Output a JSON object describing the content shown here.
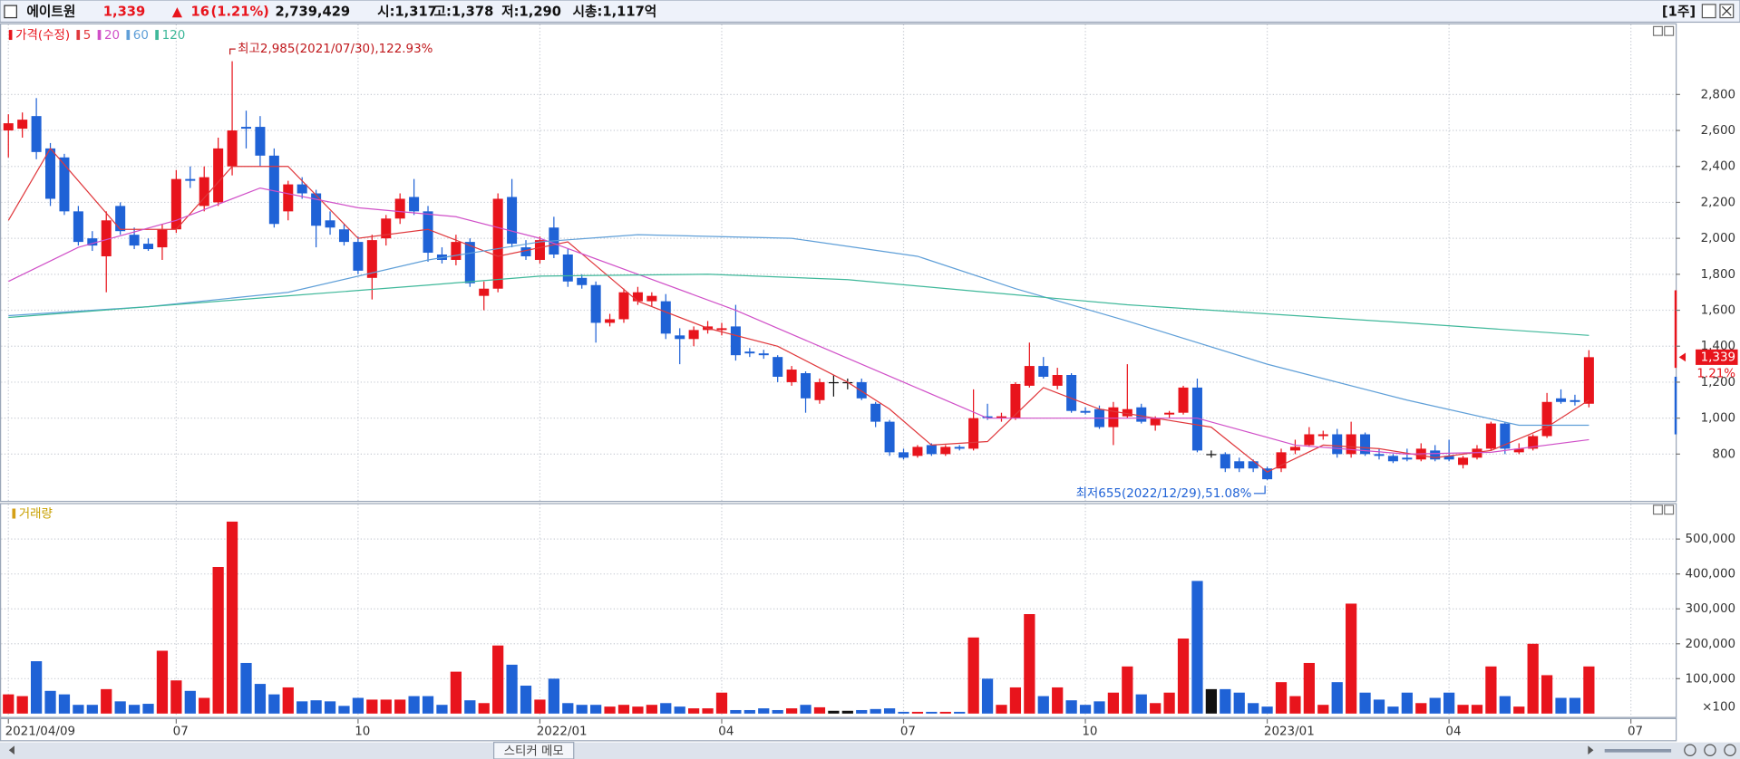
{
  "header": {
    "name": "에이트원",
    "price": "1,339",
    "arrow": "▲",
    "change": "16",
    "change_rate": "(1.21%)",
    "volume": "2,739,429",
    "open": "시:1,317",
    "high": "고:1,378",
    "low": "저:1,290",
    "market_cap": "시총:1,117억",
    "period": "[1주]"
  },
  "sticker_memo": "스티커 메모",
  "chart_data": [
    {
      "type": "candlestick",
      "name": "가격(수정)",
      "up_color": "#e8141c",
      "down_color": "#1f62d6",
      "flat_color": "#111111",
      "xlim": [
        -0.6,
        119.2
      ],
      "xticks": [
        {
          "value": 0,
          "label": "2021/04/09"
        },
        {
          "value": 12,
          "label": "07"
        },
        {
          "value": 25,
          "label": "10"
        },
        {
          "value": 38,
          "label": "2022/01"
        },
        {
          "value": 51,
          "label": "04"
        },
        {
          "value": 64,
          "label": "07"
        },
        {
          "value": 77,
          "label": "10"
        },
        {
          "value": 90,
          "label": "2023/01"
        },
        {
          "value": 103,
          "label": "04"
        },
        {
          "value": 116,
          "label": "07"
        }
      ],
      "ylim": [
        540,
        3190
      ],
      "yticks": [
        800,
        {
          "value": 1000,
          "label": "1,000"
        },
        {
          "value": 1200,
          "label": "1,200"
        },
        {
          "value": 1400,
          "label": "1,400"
        },
        {
          "value": 1600,
          "label": "1,600"
        },
        {
          "value": 1800,
          "label": "1,800"
        },
        {
          "value": 2000,
          "label": "2,000"
        },
        {
          "value": 2200,
          "label": "2,200"
        },
        {
          "value": 2400,
          "label": "2,400"
        },
        {
          "value": 2600,
          "label": "2,600"
        },
        {
          "value": 2800,
          "label": "2,800"
        }
      ],
      "grid": true,
      "open": [
        2600,
        2610,
        2680,
        2500,
        2450,
        2150,
        2000,
        1900,
        2180,
        2020,
        1970,
        1950,
        2050,
        2330,
        2180,
        2200,
        2400,
        2620,
        2620,
        2460,
        2150,
        2300,
        2250,
        2100,
        2050,
        1980,
        1780,
        2000,
        2110,
        2230,
        2150,
        1910,
        1880,
        1980,
        1680,
        1720,
        2230,
        1950,
        1880,
        2060,
        1910,
        1780,
        1740,
        1530,
        1550,
        1650,
        1650,
        1650,
        1460,
        1440,
        1490,
        1490,
        1510,
        1370,
        1360,
        1340,
        1200,
        1250,
        1100,
        1200,
        1200,
        1200,
        1080,
        980,
        810,
        790,
        850,
        800,
        840,
        830,
        1010,
        1000,
        1000,
        1180,
        1290,
        1180,
        1240,
        1040,
        1050,
        950,
        1010,
        1060,
        960,
        1020,
        1030,
        1170,
        800,
        800,
        760,
        760,
        720,
        720,
        820,
        850,
        900,
        910,
        800,
        910,
        800,
        790,
        780,
        770,
        820,
        790,
        740,
        780,
        830,
        970,
        810,
        830,
        900,
        1110,
        1100,
        1080
      ],
      "high": [
        2690,
        2700,
        2780,
        2530,
        2470,
        2180,
        2040,
        2150,
        2200,
        2060,
        2000,
        2080,
        2380,
        2400,
        2400,
        2560,
        2985,
        2710,
        2680,
        2500,
        2320,
        2340,
        2270,
        2150,
        2080,
        2010,
        2020,
        2130,
        2250,
        2330,
        2180,
        1950,
        2020,
        2000,
        1760,
        2250,
        2330,
        1990,
        2010,
        2120,
        1940,
        1800,
        1760,
        1580,
        1720,
        1730,
        1700,
        1690,
        1500,
        1510,
        1540,
        1530,
        1630,
        1390,
        1380,
        1350,
        1290,
        1260,
        1220,
        1240,
        1220,
        1220,
        1090,
        990,
        830,
        850,
        860,
        850,
        850,
        1160,
        1080,
        1030,
        1200,
        1420,
        1340,
        1280,
        1250,
        1060,
        1070,
        1090,
        1300,
        1080,
        1010,
        1040,
        1180,
        1220,
        820,
        810,
        780,
        770,
        730,
        830,
        880,
        950,
        930,
        940,
        980,
        920,
        830,
        800,
        830,
        860,
        850,
        880,
        790,
        850,
        980,
        980,
        860,
        910,
        1140,
        1160,
        1130,
        1378
      ],
      "low": [
        2450,
        2560,
        2440,
        2180,
        2130,
        1960,
        1930,
        1700,
        2020,
        1940,
        1930,
        1880,
        2030,
        2280,
        2150,
        2180,
        2350,
        2500,
        2400,
        2060,
        2100,
        2220,
        1950,
        2020,
        1960,
        1800,
        1660,
        1960,
        2080,
        2130,
        1870,
        1860,
        1850,
        1730,
        1600,
        1700,
        1950,
        1880,
        1860,
        1890,
        1730,
        1720,
        1420,
        1510,
        1530,
        1630,
        1620,
        1440,
        1300,
        1400,
        1470,
        1460,
        1320,
        1340,
        1330,
        1200,
        1180,
        1030,
        1080,
        1120,
        1160,
        1100,
        950,
        790,
        770,
        780,
        790,
        790,
        820,
        820,
        990,
        980,
        990,
        1170,
        1220,
        1160,
        1030,
        1020,
        940,
        850,
        1000,
        970,
        930,
        1000,
        1020,
        810,
        780,
        700,
        700,
        700,
        655,
        700,
        800,
        840,
        880,
        780,
        780,
        790,
        770,
        750,
        760,
        760,
        760,
        760,
        720,
        770,
        820,
        800,
        800,
        820,
        890,
        1080,
        1070,
        1060
      ],
      "close": [
        2640,
        2660,
        2480,
        2220,
        2150,
        1980,
        1960,
        2100,
        2040,
        1960,
        1940,
        2050,
        2330,
        2320,
        2340,
        2500,
        2600,
        2610,
        2460,
        2080,
        2300,
        2250,
        2070,
        2060,
        1980,
        1820,
        1990,
        2110,
        2220,
        2150,
        1920,
        1880,
        1980,
        1750,
        1720,
        2220,
        1970,
        1900,
        1990,
        1910,
        1760,
        1740,
        1530,
        1550,
        1700,
        1700,
        1680,
        1470,
        1440,
        1490,
        1510,
        1500,
        1350,
        1360,
        1350,
        1230,
        1270,
        1110,
        1200,
        1200,
        1200,
        1110,
        980,
        810,
        780,
        840,
        800,
        840,
        830,
        1000,
        1000,
        1010,
        1190,
        1290,
        1230,
        1240,
        1040,
        1030,
        950,
        1060,
        1050,
        980,
        1000,
        1030,
        1170,
        820,
        800,
        720,
        720,
        720,
        660,
        810,
        840,
        910,
        910,
        800,
        910,
        800,
        790,
        760,
        770,
        830,
        770,
        770,
        780,
        830,
        970,
        830,
        830,
        900,
        1090,
        1090,
        1090,
        1339
      ],
      "series": [
        {
          "name": "5",
          "color": "#e0383c",
          "x": [
            0,
            3,
            8,
            12,
            16,
            20,
            25,
            30,
            35,
            40,
            45,
            50,
            55,
            60,
            63,
            66,
            70,
            74,
            78,
            82,
            86,
            90,
            94,
            98,
            102,
            106,
            110,
            113
          ],
          "values": [
            2100,
            2500,
            2050,
            2050,
            2400,
            2400,
            2000,
            2050,
            1900,
            1980,
            1650,
            1500,
            1400,
            1200,
            1050,
            850,
            870,
            1170,
            1050,
            1000,
            950,
            700,
            850,
            830,
            780,
            820,
            950,
            1100
          ]
        },
        {
          "name": "20",
          "color": "#d050c8",
          "x": [
            0,
            5,
            12,
            18,
            25,
            32,
            38,
            45,
            52,
            58,
            64,
            70,
            78,
            85,
            92,
            100,
            106,
            113
          ],
          "values": [
            1760,
            1950,
            2100,
            2280,
            2170,
            2120,
            2000,
            1800,
            1600,
            1400,
            1200,
            1000,
            1000,
            1000,
            850,
            800,
            810,
            880
          ]
        },
        {
          "name": "60",
          "color": "#5f9fd8",
          "x": [
            0,
            10,
            20,
            30,
            38,
            45,
            56,
            65,
            72,
            80,
            90,
            100,
            108,
            113
          ],
          "values": [
            1570,
            1620,
            1700,
            1880,
            1980,
            2020,
            2000,
            1900,
            1720,
            1540,
            1300,
            1100,
            960,
            960
          ]
        },
        {
          "name": "120",
          "color": "#3fb89a",
          "x": [
            0,
            10,
            20,
            30,
            38,
            50,
            60,
            70,
            80,
            90,
            100,
            113
          ],
          "values": [
            1560,
            1620,
            1680,
            1740,
            1790,
            1800,
            1770,
            1700,
            1630,
            1580,
            1530,
            1460
          ]
        }
      ],
      "annotations": {
        "high": "최고2,985(2021/07/30),122.93%",
        "low": "최저655(2022/12/29),51.08%"
      },
      "last_price_label": "1,339",
      "last_change_label": "1.21%"
    },
    {
      "type": "bar",
      "title": "거래량",
      "unit_label": "×100",
      "ylim": [
        0,
        600000
      ],
      "yticks": [
        {
          "value": 100000,
          "label": "100,000"
        },
        {
          "value": 200000,
          "label": "200,000"
        },
        {
          "value": 300000,
          "label": "300,000"
        },
        {
          "value": 400000,
          "label": "400,000"
        },
        {
          "value": 500000,
          "label": "500,000"
        }
      ],
      "grid": true,
      "values": [
        55000,
        50000,
        150000,
        65000,
        55000,
        25000,
        25000,
        70000,
        35000,
        25000,
        28000,
        180000,
        95000,
        65000,
        45000,
        420000,
        550000,
        145000,
        85000,
        55000,
        75000,
        35000,
        38000,
        35000,
        22000,
        45000,
        40000,
        40000,
        40000,
        50000,
        50000,
        25000,
        120000,
        38000,
        30000,
        195000,
        140000,
        80000,
        40000,
        100000,
        30000,
        25000,
        25000,
        20000,
        25000,
        20000,
        25000,
        30000,
        20000,
        15000,
        15000,
        60000,
        10000,
        10000,
        15000,
        10000,
        15000,
        25000,
        18000,
        8000,
        8000,
        10000,
        13000,
        15000,
        5000,
        5000,
        5000,
        5000,
        5000,
        218000,
        100000,
        25000,
        75000,
        285000,
        50000,
        75000,
        38000,
        25000,
        35000,
        60000,
        135000,
        55000,
        30000,
        60000,
        215000,
        380000,
        70000,
        70000,
        60000,
        30000,
        20000,
        90000,
        50000,
        145000,
        25000,
        90000,
        315000,
        60000,
        40000,
        20000,
        60000,
        30000,
        45000,
        60000,
        25000,
        25000,
        135000,
        50000,
        20000,
        200000,
        110000,
        45000,
        45000,
        135000
      ]
    }
  ]
}
